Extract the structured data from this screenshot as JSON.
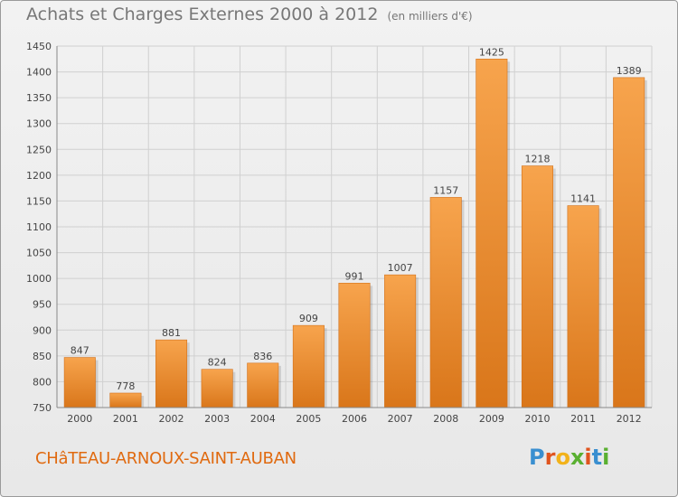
{
  "header": {
    "title": "Achats et Charges Externes 2000 à 2012",
    "subtitle": "(en milliers d'€)"
  },
  "footer": {
    "commune": "CHâTEAU-ARNOUX-SAINT-AUBAN",
    "logo_text": "Proxiti"
  },
  "colors": {
    "bar_top": "#f7a44d",
    "bar_bottom": "#d9761a",
    "grid": "#d0d0d0",
    "commune_text": "#e06a10"
  },
  "chart_data": {
    "type": "bar",
    "title": "Achats et Charges Externes 2000 à 2012",
    "subtitle": "(en milliers d'€)",
    "categories": [
      "2000",
      "2001",
      "2002",
      "2003",
      "2004",
      "2005",
      "2006",
      "2007",
      "2008",
      "2009",
      "2010",
      "2011",
      "2012"
    ],
    "values": [
      847,
      778,
      881,
      824,
      836,
      909,
      991,
      1007,
      1157,
      1425,
      1218,
      1141,
      1389
    ],
    "ylim": [
      750,
      1450
    ],
    "yticks": [
      750,
      800,
      850,
      900,
      950,
      1000,
      1050,
      1100,
      1150,
      1200,
      1250,
      1300,
      1350,
      1400,
      1450
    ],
    "grid": true,
    "data_labels": true
  }
}
